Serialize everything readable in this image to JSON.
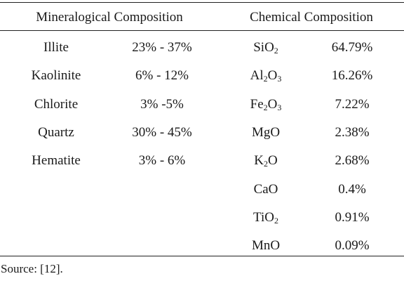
{
  "table": {
    "headers": {
      "mineralogical": "Mineralogical Composition",
      "chemical": "Chemical Composition"
    },
    "rows": [
      {
        "mineral": "Illite",
        "range": "23% - 37%",
        "compound": [
          [
            "Si",
            ""
          ],
          [
            "O",
            "2"
          ]
        ],
        "percent": "64.79%"
      },
      {
        "mineral": "Kaolinite",
        "range": "6% - 12%",
        "compound": [
          [
            "Al",
            "2"
          ],
          [
            "O",
            "3"
          ]
        ],
        "percent": "16.26%"
      },
      {
        "mineral": "Chlorite",
        "range": "3% -5%",
        "compound": [
          [
            "Fe",
            "2"
          ],
          [
            "O",
            "3"
          ]
        ],
        "percent": "7.22%"
      },
      {
        "mineral": "Quartz",
        "range": "30% - 45%",
        "compound": [
          [
            "MgO",
            ""
          ]
        ],
        "percent": "2.38%"
      },
      {
        "mineral": "Hematite",
        "range": "3% - 6%",
        "compound": [
          [
            "K",
            "2"
          ],
          [
            "O",
            ""
          ]
        ],
        "percent": "2.68%"
      },
      {
        "mineral": "",
        "range": "",
        "compound": [
          [
            "CaO",
            ""
          ]
        ],
        "percent": "0.4%"
      },
      {
        "mineral": "",
        "range": "",
        "compound": [
          [
            "Ti",
            ""
          ],
          [
            "O",
            "2"
          ]
        ],
        "percent": "0.91%"
      },
      {
        "mineral": "",
        "range": "",
        "compound": [
          [
            "MnO",
            ""
          ]
        ],
        "percent": "0.09%"
      }
    ]
  },
  "source": "Source: [12]."
}
